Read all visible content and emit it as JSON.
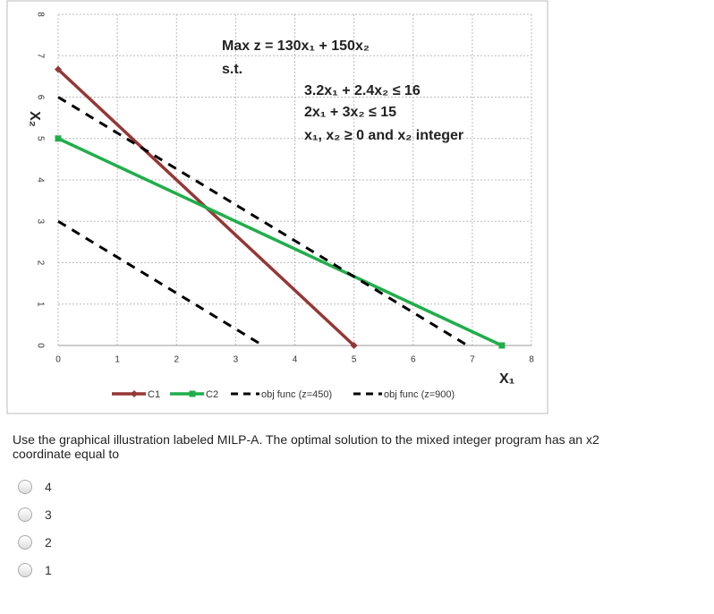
{
  "chart_data": {
    "type": "line",
    "x_label": "X₁",
    "y_label": "X₂",
    "annotations": [
      "Max z = 130x₁ + 150x₂",
      "s.t.",
      "3.2x₁ + 2.4x₂ ≤ 16",
      "2x₁ + 3x₂ ≤ 15",
      "x₁, x₂ ≥ 0 and x₂ integer"
    ],
    "xlim": [
      0,
      8
    ],
    "xticks": [
      0,
      1,
      2,
      3,
      4,
      5,
      6,
      7,
      8
    ],
    "ylim": [
      0,
      8
    ],
    "yticks": [
      0,
      1,
      2,
      3,
      4,
      5,
      6,
      7,
      8
    ],
    "grid": true,
    "legend": "bottom",
    "series": [
      {
        "name": "C1",
        "color": "#953735",
        "marker": "diamond",
        "x": [
          0,
          5
        ],
        "values": [
          6.67,
          0
        ]
      },
      {
        "name": "C2",
        "color": "#1fae4a",
        "marker": "square",
        "x": [
          0,
          7.5
        ],
        "values": [
          5,
          0
        ]
      },
      {
        "name": "obj func (z=450)",
        "color": "#000000",
        "dashed": true,
        "x": [
          0,
          3.46
        ],
        "values": [
          3,
          0
        ]
      },
      {
        "name": "obj func (z=900)",
        "color": "#000000",
        "dashed": true,
        "x": [
          0,
          6.92
        ],
        "values": [
          6,
          0
        ]
      }
    ]
  },
  "question": "Use the graphical illustration labeled MILP-A. The optimal solution to the mixed integer program has an x2 coordinate equal to",
  "options": [
    "4",
    "3",
    "2",
    "1"
  ]
}
